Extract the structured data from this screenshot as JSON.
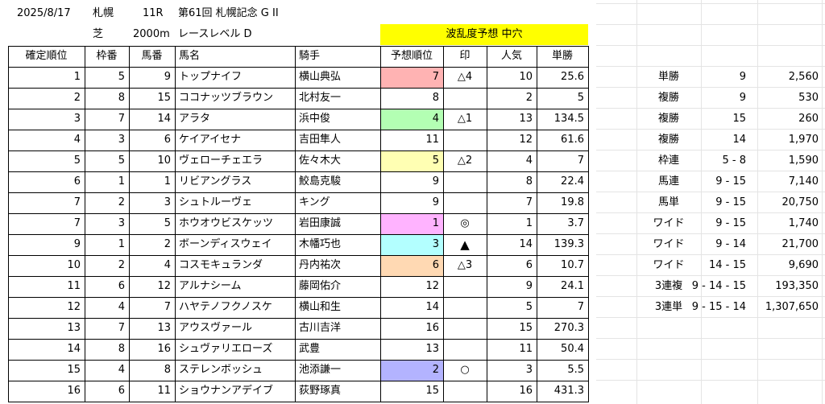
{
  "header": {
    "date": "2025/8/17",
    "venue": "札幌",
    "race_no": "11R",
    "race_name": "第61回 札幌記念 G II",
    "surface": "芝",
    "distance": "2000m",
    "race_level": "レースレベル D",
    "forecast_banner": "波乱度予想 中穴"
  },
  "columns": [
    "確定順位",
    "枠番",
    "馬番",
    "馬名",
    "騎手",
    "予想順位",
    "印",
    "人気",
    "単勝"
  ],
  "colors": {
    "pink": "#ffb3b3",
    "green": "#b3ffb3",
    "yellow": "#ffffb3",
    "magenta": "#ffb3ff",
    "cyan": "#b3ffff",
    "peach": "#ffd9b3",
    "lavender": "#b3b3ff",
    "banner": "#ffff00"
  },
  "rows": [
    {
      "rank": "1",
      "waku": "5",
      "umaban": "9",
      "horse": "トップナイフ",
      "jockey": "横山典弘",
      "pred": "7",
      "mark": "△4",
      "pop": "10",
      "odds": "25.6",
      "hl": "pink"
    },
    {
      "rank": "2",
      "waku": "8",
      "umaban": "15",
      "horse": "ココナッツブラウン",
      "jockey": "北村友一",
      "pred": "8",
      "mark": "",
      "pop": "2",
      "odds": "5",
      "hl": ""
    },
    {
      "rank": "3",
      "waku": "7",
      "umaban": "14",
      "horse": "アラタ",
      "jockey": "浜中俊",
      "pred": "4",
      "mark": "△1",
      "pop": "13",
      "odds": "134.5",
      "hl": "green"
    },
    {
      "rank": "4",
      "waku": "3",
      "umaban": "6",
      "horse": "ケイアイセナ",
      "jockey": "吉田隼人",
      "pred": "11",
      "mark": "",
      "pop": "12",
      "odds": "61.6",
      "hl": ""
    },
    {
      "rank": "5",
      "waku": "5",
      "umaban": "10",
      "horse": "ヴェローチェエラ",
      "jockey": "佐々木大",
      "pred": "5",
      "mark": "△2",
      "pop": "4",
      "odds": "7",
      "hl": "yellow"
    },
    {
      "rank": "6",
      "waku": "1",
      "umaban": "1",
      "horse": "リビアングラス",
      "jockey": "鮫島克駿",
      "pred": "9",
      "mark": "",
      "pop": "8",
      "odds": "22.4",
      "hl": ""
    },
    {
      "rank": "7",
      "waku": "2",
      "umaban": "3",
      "horse": "シュトルーヴェ",
      "jockey": "キング",
      "pred": "9",
      "mark": "",
      "pop": "7",
      "odds": "19.8",
      "hl": ""
    },
    {
      "rank": "7",
      "waku": "3",
      "umaban": "5",
      "horse": "ホウオウビスケッツ",
      "jockey": "岩田康誠",
      "pred": "1",
      "mark": "◎",
      "pop": "1",
      "odds": "3.7",
      "hl": "magenta"
    },
    {
      "rank": "9",
      "waku": "1",
      "umaban": "2",
      "horse": "ボーンディスウェイ",
      "jockey": "木幡巧也",
      "pred": "3",
      "mark": "▲",
      "pop": "14",
      "odds": "139.3",
      "hl": "cyan"
    },
    {
      "rank": "10",
      "waku": "2",
      "umaban": "4",
      "horse": "コスモキュランダ",
      "jockey": "丹内祐次",
      "pred": "6",
      "mark": "△3",
      "pop": "6",
      "odds": "10.7",
      "hl": "peach"
    },
    {
      "rank": "11",
      "waku": "6",
      "umaban": "12",
      "horse": "アルナシーム",
      "jockey": "藤岡佑介",
      "pred": "12",
      "mark": "",
      "pop": "9",
      "odds": "24.1",
      "hl": ""
    },
    {
      "rank": "12",
      "waku": "4",
      "umaban": "7",
      "horse": "ハヤテノフクノスケ",
      "jockey": "横山和生",
      "pred": "14",
      "mark": "",
      "pop": "5",
      "odds": "7",
      "hl": ""
    },
    {
      "rank": "13",
      "waku": "7",
      "umaban": "13",
      "horse": "アウスヴァール",
      "jockey": "古川吉洋",
      "pred": "16",
      "mark": "",
      "pop": "15",
      "odds": "270.3",
      "hl": ""
    },
    {
      "rank": "14",
      "waku": "8",
      "umaban": "16",
      "horse": "シュヴァリエローズ",
      "jockey": "武豊",
      "pred": "13",
      "mark": "",
      "pop": "11",
      "odds": "50.4",
      "hl": ""
    },
    {
      "rank": "15",
      "waku": "4",
      "umaban": "8",
      "horse": "ステレンボッシュ",
      "jockey": "池添謙一",
      "pred": "2",
      "mark": "○",
      "pop": "3",
      "odds": "5.5",
      "hl": "lavender"
    },
    {
      "rank": "16",
      "waku": "6",
      "umaban": "11",
      "horse": "ショウナンアデイブ",
      "jockey": "荻野琢真",
      "pred": "15",
      "mark": "",
      "pop": "16",
      "odds": "431.3",
      "hl": ""
    }
  ],
  "payouts": [
    {
      "type": "単勝",
      "combo": "9",
      "amount": "2,560"
    },
    {
      "type": "複勝",
      "combo": "9",
      "amount": "530"
    },
    {
      "type": "複勝",
      "combo": "15",
      "amount": "260"
    },
    {
      "type": "複勝",
      "combo": "14",
      "amount": "1,970"
    },
    {
      "type": "枠連",
      "combo": "5 - 8",
      "amount": "1,590"
    },
    {
      "type": "馬連",
      "combo": "9 - 15",
      "amount": "7,140"
    },
    {
      "type": "馬単",
      "combo": "9 - 15",
      "amount": "20,750"
    },
    {
      "type": "ワイド",
      "combo": "9 - 15",
      "amount": "1,740"
    },
    {
      "type": "ワイド",
      "combo": "9 - 14",
      "amount": "21,700"
    },
    {
      "type": "ワイド",
      "combo": "14 - 15",
      "amount": "9,690"
    },
    {
      "type": "3連複",
      "combo": "9 - 14 - 15",
      "amount": "193,350"
    },
    {
      "type": "3連単",
      "combo": "9 - 15 - 14",
      "amount": "1,307,650"
    }
  ]
}
